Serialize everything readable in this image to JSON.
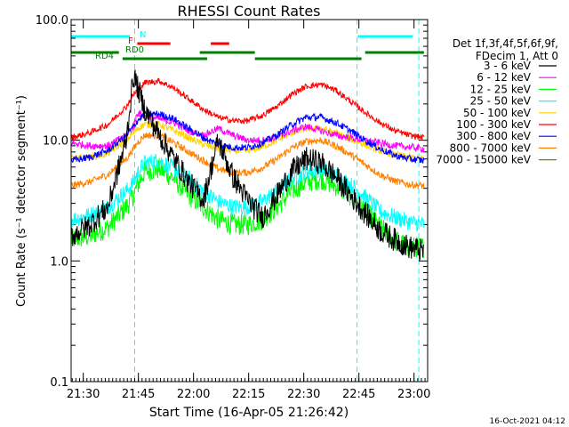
{
  "chart_data": {
    "type": "line",
    "title": "RHESSI Count Rates",
    "xlabel": "Start Time (16-Apr-05 21:26:42)",
    "ylabel": "Count Rate (s⁻¹ detector segment⁻¹)",
    "y_scale": "log",
    "ylim": [
      0.1,
      100.0
    ],
    "y_ticks": [
      "0.1",
      "1.0",
      "10.0",
      "100.0"
    ],
    "x_start_time": "21:26:42",
    "x_range_min": [
      0,
      97
    ],
    "x_ticks": [
      {
        "label": "21:30",
        "min": 3.3
      },
      {
        "label": "21:45",
        "min": 18.3
      },
      {
        "label": "22:00",
        "min": 33.3
      },
      {
        "label": "22:15",
        "min": 48.3
      },
      {
        "label": "22:30",
        "min": 63.3
      },
      {
        "label": "22:45",
        "min": 78.3
      },
      {
        "label": "23:00",
        "min": 93.3
      }
    ],
    "legend_header": [
      "Det 1f,3f,4f,5f,6f,9f,",
      "FDecim 1, Att 0"
    ],
    "legend_placement": "right",
    "x_samples_min": [
      0,
      5,
      10,
      15,
      17,
      18,
      20,
      24,
      28,
      32,
      36,
      40,
      44,
      48,
      52,
      56,
      60,
      64,
      68,
      72,
      76,
      80,
      84,
      88,
      92,
      96
    ],
    "series": [
      {
        "name": "3 - 6 keV",
        "color": "#000000",
        "values": [
          1.6,
          2.0,
          2.8,
          10,
          35,
          28,
          18,
          11,
          7,
          4.5,
          3.2,
          10,
          5,
          3.2,
          2.3,
          3.5,
          5.5,
          7,
          6.5,
          5,
          3.5,
          2.5,
          1.8,
          1.5,
          1.3,
          1.2
        ]
      },
      {
        "name": "6 - 12 keV",
        "color": "#ff00ff",
        "values": [
          9.5,
          9.0,
          9.0,
          11,
          13,
          17,
          16,
          15,
          14,
          12,
          11,
          12.5,
          11,
          10,
          10,
          10.5,
          12,
          13,
          12,
          11,
          10.5,
          10,
          9.5,
          9,
          8.8,
          8.5
        ]
      },
      {
        "name": "12 - 25 keV",
        "color": "#00ff00",
        "values": [
          1.5,
          1.6,
          1.9,
          2.8,
          3.5,
          4.2,
          5.5,
          5.8,
          4.8,
          3.5,
          2.8,
          2.2,
          2.0,
          2.0,
          2.2,
          2.8,
          3.8,
          4.5,
          4.8,
          4.2,
          3.5,
          2.6,
          1.9,
          1.5,
          1.3,
          1.3
        ]
      },
      {
        "name": "25 - 50 keV",
        "color": "#00ffff",
        "values": [
          2.2,
          2.4,
          2.8,
          3.8,
          4.5,
          5.3,
          6.5,
          6.8,
          5.8,
          4.8,
          3.8,
          3.1,
          2.8,
          2.8,
          3.1,
          3.8,
          4.8,
          5.5,
          5.8,
          5.1,
          4.3,
          3.4,
          2.6,
          2.3,
          2.1,
          2.0
        ]
      },
      {
        "name": "50 - 100 keV",
        "color": "#ffd400",
        "values": [
          7.0,
          7.2,
          7.8,
          10,
          11.5,
          12.5,
          13.5,
          13.5,
          12,
          10.5,
          9.2,
          8.5,
          8.2,
          8.2,
          8.8,
          10,
          11.5,
          12.5,
          12.5,
          11.5,
          10.2,
          9.2,
          8.2,
          7.6,
          7.2,
          7.0
        ]
      },
      {
        "name": "100 - 300 keV",
        "color": "#ff0000",
        "values": [
          10.5,
          11.5,
          13.5,
          19,
          24,
          26,
          30,
          31,
          27,
          22,
          18,
          15.5,
          14.5,
          14.5,
          16,
          19,
          24,
          28,
          29,
          26,
          21,
          17,
          14,
          12,
          11,
          10.5
        ]
      },
      {
        "name": "300 - 800 keV",
        "color": "#0000ff",
        "values": [
          6.8,
          7.2,
          8.2,
          11,
          13,
          14.5,
          16.5,
          16.5,
          15,
          12.5,
          10.5,
          9.2,
          8.7,
          8.7,
          9.5,
          11,
          13.5,
          15.5,
          15.5,
          14,
          12,
          10,
          8.5,
          7.5,
          7.0,
          6.8
        ]
      },
      {
        "name": "800 - 7000 keV",
        "color": "#ff8000",
        "values": [
          4.2,
          4.5,
          5.2,
          7,
          8.5,
          9.5,
          11,
          11,
          9.5,
          8,
          6.8,
          5.8,
          5.4,
          5.4,
          5.9,
          7,
          8.6,
          9.8,
          10,
          9,
          7.6,
          6.3,
          5.2,
          4.6,
          4.3,
          4.2
        ]
      },
      {
        "name": "7000 - 15000 keV",
        "color": "#808000",
        "values": []
      }
    ],
    "attenuator_bars": [
      {
        "label": "N",
        "color": "#00ffff",
        "segments": [
          [
            0,
            16
          ],
          [
            78,
            93
          ]
        ]
      },
      {
        "label": "F",
        "color": "#ff0000",
        "segments": [
          [
            18,
            27
          ],
          [
            38,
            43
          ]
        ]
      },
      {
        "label": "RD0",
        "color": "#008000",
        "segments": [
          [
            0,
            13
          ],
          [
            35,
            50
          ],
          [
            80,
            96
          ]
        ]
      },
      {
        "label": "RD4",
        "color": "#008000",
        "segments": [
          [
            14,
            37
          ],
          [
            50,
            79
          ]
        ]
      }
    ],
    "dashed_markers_min": [
      0,
      17.3,
      77.8,
      94.6
    ]
  },
  "footer": {
    "timestamp": "16-Oct-2021 04:12"
  }
}
